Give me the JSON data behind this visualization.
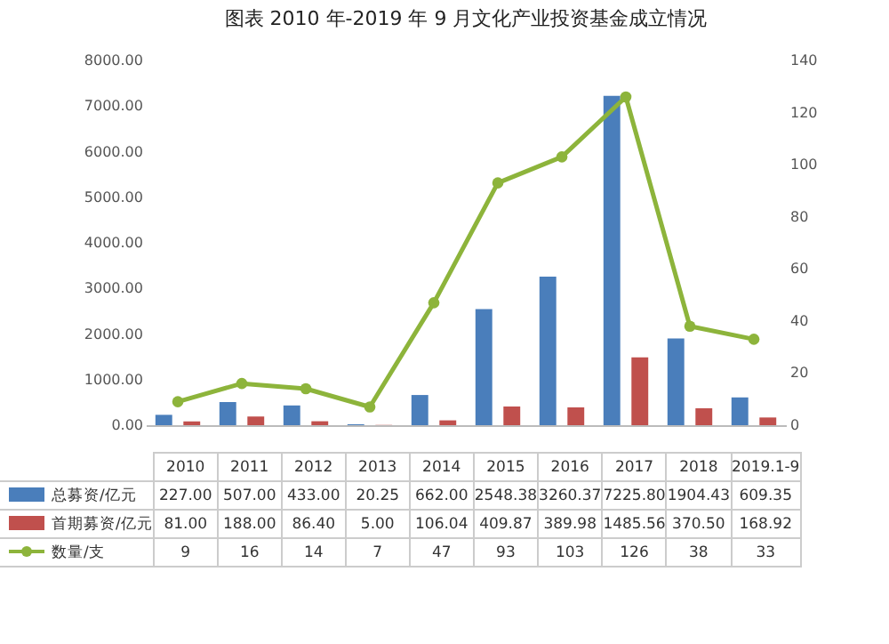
{
  "chart_data": {
    "type": "bar",
    "title": "图表  2010 年-2019 年 9 月文化产业投资基金成立情况",
    "categories": [
      "2010",
      "2011",
      "2012",
      "2013",
      "2014",
      "2015",
      "2016",
      "2017",
      "2018",
      "2019.1-9"
    ],
    "series": [
      {
        "name": "总募资/亿元",
        "color": "#4a7ebb",
        "values": [
          227.0,
          507.0,
          433.0,
          20.25,
          662.0,
          2548.38,
          3260.37,
          7225.8,
          1904.43,
          609.35
        ],
        "value_labels": [
          "227.00",
          "507.00",
          "433.00",
          "20.25",
          "662.00",
          "2548.38",
          "3260.37",
          "7225.80",
          "1904.43",
          "609.35"
        ]
      },
      {
        "name": "首期募资/亿元",
        "color": "#c0504d",
        "values": [
          81.0,
          188.0,
          86.4,
          5.0,
          106.04,
          409.87,
          389.98,
          1485.56,
          370.5,
          168.92
        ],
        "value_labels": [
          "81.00",
          "188.00",
          "86.40",
          "5.00",
          "106.04",
          "409.87",
          "389.98",
          "1485.56",
          "370.50",
          "168.92"
        ]
      },
      {
        "name": "数量/支",
        "type": "line",
        "axis": "y2",
        "color": "#8db43b",
        "marker": "circle",
        "values": [
          9,
          16,
          14,
          7,
          47,
          93,
          103,
          126,
          38,
          33
        ]
      }
    ],
    "ylim": [
      0,
      8000
    ],
    "yticks": [
      {
        "value": 0,
        "label": "0.00"
      },
      {
        "value": 1000,
        "label": "1000.00"
      },
      {
        "value": 2000,
        "label": "2000.00"
      },
      {
        "value": 3000,
        "label": "3000.00"
      },
      {
        "value": 4000,
        "label": "4000.00"
      },
      {
        "value": 5000,
        "label": "5000.00"
      },
      {
        "value": 6000,
        "label": "6000.00"
      },
      {
        "value": 7000,
        "label": "7000.00"
      },
      {
        "value": 8000,
        "label": "8000.00"
      }
    ],
    "y2lim": [
      0,
      140
    ],
    "y2ticks": [
      0,
      20,
      40,
      60,
      80,
      100,
      120,
      140
    ],
    "legend": "bottom left",
    "data_labels": true
  }
}
